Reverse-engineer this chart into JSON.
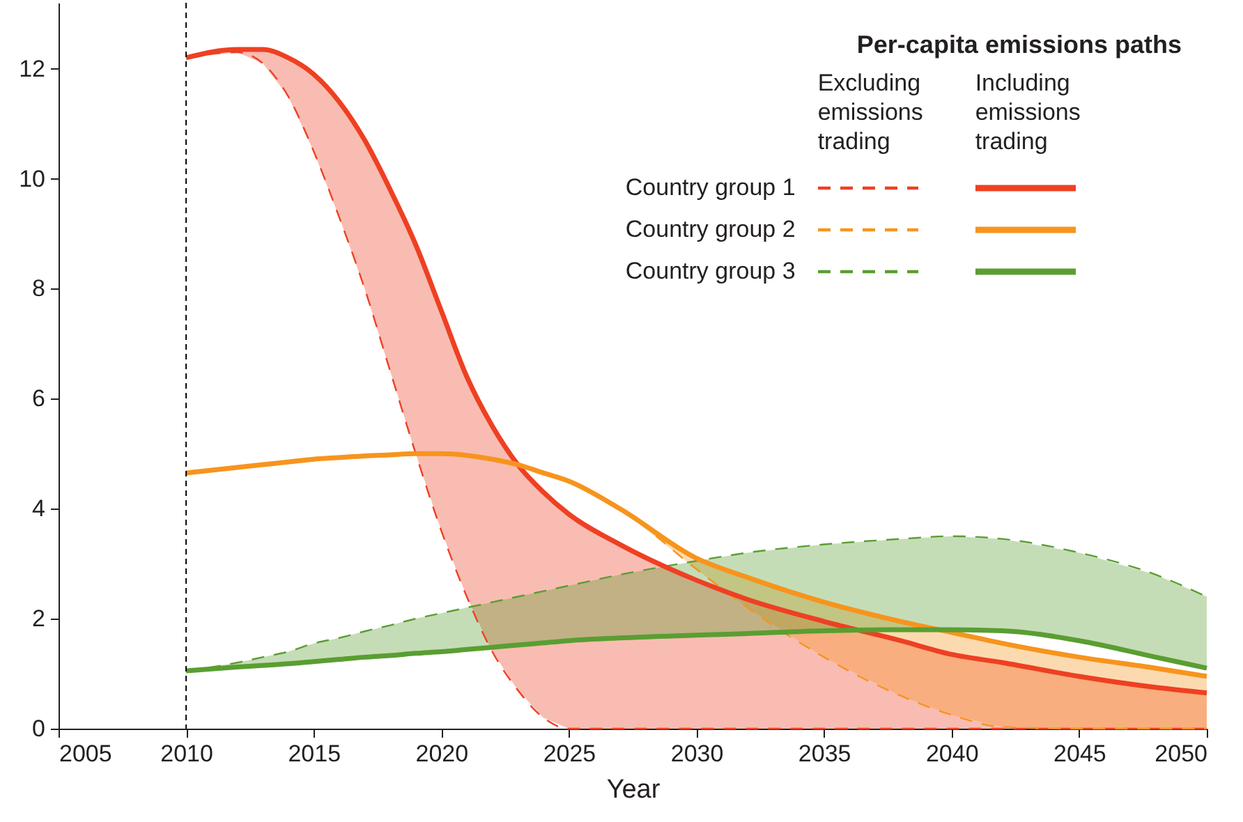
{
  "chart_data": {
    "type": "line",
    "xlabel": "Year",
    "legend_title": "Per-capita emissions paths",
    "annotations": [
      "Excluding emissions trading",
      "Including emissions trading"
    ],
    "x": [
      2010,
      2012,
      2013,
      2014,
      2015,
      2016,
      2017,
      2018,
      2019,
      2020,
      2021,
      2022,
      2023,
      2024,
      2025,
      2027,
      2030,
      2032,
      2035,
      2038,
      2040,
      2042,
      2045,
      2048,
      2050
    ],
    "xlim": [
      2005,
      2050
    ],
    "xticks": [
      2005,
      2010,
      2015,
      2020,
      2025,
      2030,
      2035,
      2040,
      2045,
      2050
    ],
    "ylim": [
      0,
      13.2
    ],
    "yticks": [
      0,
      2,
      4,
      6,
      8,
      10,
      12
    ],
    "grid": false,
    "legend": "top right",
    "ref_lines": [
      {
        "axis": "x",
        "value": 2010,
        "color": "#000000",
        "line_style": "dashed"
      }
    ],
    "series": [
      {
        "name": "Country group 1",
        "color": "#ee4023",
        "line_style": "dashed",
        "values": [
          12.2,
          12.3,
          12.1,
          11.5,
          10.5,
          9.3,
          8.0,
          6.5,
          5.0,
          3.6,
          2.4,
          1.4,
          0.7,
          0.2,
          0,
          0,
          0,
          0,
          0,
          0,
          0,
          0,
          0,
          0,
          0
        ]
      },
      {
        "name": "Country group 2",
        "color": "#f7941d",
        "line_style": "dashed",
        "values": [
          4.65,
          4.75,
          4.8,
          4.85,
          4.9,
          4.93,
          4.96,
          4.98,
          5.0,
          5.0,
          4.97,
          4.9,
          4.8,
          4.65,
          4.5,
          4.0,
          2.9,
          2.2,
          1.3,
          0.6,
          0.25,
          0.03,
          0,
          0,
          0
        ]
      },
      {
        "name": "Country group 3",
        "color": "#5a9e32",
        "line_style": "dashed",
        "values": [
          1.05,
          1.2,
          1.3,
          1.4,
          1.55,
          1.65,
          1.77,
          1.88,
          2.0,
          2.1,
          2.2,
          2.3,
          2.4,
          2.5,
          2.6,
          2.8,
          3.05,
          3.2,
          3.35,
          3.45,
          3.5,
          3.45,
          3.2,
          2.8,
          2.4
        ]
      },
      {
        "color": "#ee4023",
        "line_style": "solid",
        "values": [
          12.2,
          12.35,
          12.35,
          12.2,
          11.9,
          11.4,
          10.7,
          9.8,
          8.8,
          7.6,
          6.4,
          5.5,
          4.8,
          4.3,
          3.9,
          3.35,
          2.7,
          2.35,
          1.95,
          1.6,
          1.35,
          1.2,
          0.95,
          0.75,
          0.65
        ],
        "lower": [
          12.2,
          12.3,
          12.1,
          11.5,
          10.5,
          9.3,
          8.0,
          6.5,
          5.0,
          3.6,
          2.4,
          1.4,
          0.7,
          0.2,
          0,
          0,
          0,
          0,
          0,
          0,
          0,
          0,
          0,
          0,
          0
        ],
        "upper": [
          12.2,
          12.35,
          12.35,
          12.2,
          11.9,
          11.4,
          10.7,
          9.8,
          8.8,
          7.6,
          6.4,
          5.5,
          4.8,
          4.3,
          3.9,
          3.35,
          2.7,
          2.35,
          1.95,
          1.6,
          1.35,
          1.2,
          0.95,
          0.75,
          0.65
        ]
      },
      {
        "color": "#f7941d",
        "line_style": "solid",
        "values": [
          4.65,
          4.75,
          4.8,
          4.85,
          4.9,
          4.93,
          4.96,
          4.98,
          5.0,
          5.0,
          4.97,
          4.9,
          4.8,
          4.65,
          4.5,
          4.0,
          3.1,
          2.75,
          2.3,
          1.95,
          1.75,
          1.55,
          1.3,
          1.1,
          0.95
        ],
        "lower": [
          4.65,
          4.75,
          4.8,
          4.85,
          4.9,
          4.93,
          4.96,
          4.98,
          5.0,
          5.0,
          4.97,
          4.9,
          4.8,
          4.65,
          4.5,
          4.0,
          2.9,
          2.2,
          1.3,
          0.6,
          0.25,
          0.03,
          0,
          0,
          0
        ],
        "upper": [
          4.65,
          4.75,
          4.8,
          4.85,
          4.9,
          4.93,
          4.96,
          4.98,
          5.0,
          5.0,
          4.97,
          4.9,
          4.8,
          4.65,
          4.5,
          4.0,
          3.1,
          2.75,
          2.3,
          1.95,
          1.75,
          1.55,
          1.3,
          1.1,
          0.95
        ]
      },
      {
        "color": "#5a9e32",
        "line_style": "solid",
        "values": [
          1.05,
          1.12,
          1.15,
          1.18,
          1.22,
          1.26,
          1.3,
          1.33,
          1.37,
          1.4,
          1.44,
          1.48,
          1.52,
          1.56,
          1.6,
          1.65,
          1.7,
          1.73,
          1.78,
          1.8,
          1.8,
          1.78,
          1.6,
          1.3,
          1.1
        ],
        "lower": [
          1.05,
          1.12,
          1.15,
          1.18,
          1.22,
          1.26,
          1.3,
          1.33,
          1.37,
          1.4,
          1.44,
          1.48,
          1.52,
          1.56,
          1.6,
          1.65,
          1.7,
          1.73,
          1.78,
          1.8,
          1.8,
          1.78,
          1.6,
          1.3,
          1.1
        ],
        "upper": [
          1.05,
          1.2,
          1.3,
          1.4,
          1.55,
          1.65,
          1.77,
          1.88,
          2.0,
          2.1,
          2.2,
          2.3,
          2.4,
          2.5,
          2.6,
          2.8,
          3.05,
          3.2,
          3.35,
          3.45,
          3.5,
          3.45,
          3.2,
          2.8,
          2.4
        ]
      }
    ]
  }
}
